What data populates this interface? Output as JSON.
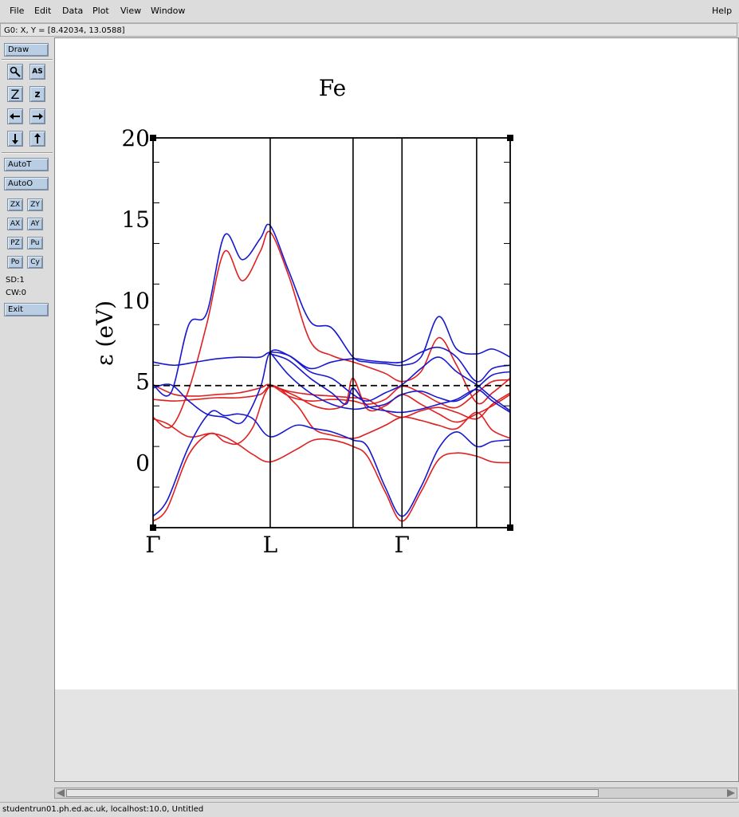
{
  "menubar": {
    "file": "File",
    "edit": "Edit",
    "data": "Data",
    "plot": "Plot",
    "view": "View",
    "window": "Window",
    "help": "Help"
  },
  "locator": {
    "text": "G0: X, Y = [8.42034, 13.0588]"
  },
  "toolbar": {
    "draw": "Draw",
    "autot": "AutoT",
    "autoo": "AutoO",
    "zx": "ZX",
    "zy": "ZY",
    "ax": "AX",
    "ay": "AY",
    "pz": "PZ",
    "pu": "Pu",
    "po": "Po",
    "cy": "Cy",
    "sd": "SD:1",
    "cw": "CW:0",
    "exit": "Exit",
    "zoom_letter": "Z",
    "zoom_letter_small": "z",
    "autoscale_glyph": "AS"
  },
  "status": {
    "text": "studentrun01.ph.ed.ac.uk, localhost:10.0, Untitled"
  },
  "chart_data": {
    "type": "line",
    "title": "Fe",
    "ylabel": "ε (eV)",
    "xlabel": "",
    "ylim": [
      -4,
      20
    ],
    "xlim": [
      0,
      1
    ],
    "yticks": [
      0,
      5,
      10,
      15,
      20
    ],
    "xticks": [
      {
        "label": "Γ",
        "x": 0
      },
      {
        "label": "L",
        "x": 0.328
      },
      {
        "label": "",
        "x": 0.56
      },
      {
        "label": "Γ",
        "x": 0.697
      },
      {
        "label": "",
        "x": 0.906
      }
    ],
    "fermi_level": 4.75,
    "colors": {
      "red": "#e02020",
      "blue": "#1818d0",
      "fermi": "#000000"
    },
    "series": [
      {
        "color": "red",
        "x": [
          0,
          0.04,
          0.1,
          0.16,
          0.2,
          0.24,
          0.28,
          0.328,
          0.4,
          0.45,
          0.5,
          0.56,
          0.6,
          0.65,
          0.697,
          0.75,
          0.8,
          0.85,
          0.906,
          0.95,
          1.0
        ],
        "y": [
          -3.6,
          -2.8,
          0.5,
          1.8,
          1.3,
          1.2,
          2.2,
          4.7,
          3.6,
          2.1,
          1.7,
          1.5,
          1.8,
          2.3,
          2.8,
          2.6,
          2.3,
          2.1,
          3.1,
          2.0,
          1.5
        ]
      },
      {
        "color": "red",
        "x": [
          0,
          0.04,
          0.1,
          0.16,
          0.2,
          0.24,
          0.28,
          0.328,
          0.4,
          0.45,
          0.5,
          0.56,
          0.6,
          0.65,
          0.697,
          0.75,
          0.8,
          0.85,
          0.906,
          0.95,
          1.0
        ],
        "y": [
          2.7,
          2.4,
          1.6,
          1.8,
          1.6,
          1.1,
          0.5,
          0.05,
          0.8,
          1.4,
          1.4,
          1.0,
          0.4,
          -1.8,
          -3.6,
          -1.8,
          0.2,
          0.6,
          0.4,
          0.05,
          0.0
        ]
      },
      {
        "color": "red",
        "x": [
          0,
          0.05,
          0.1,
          0.15,
          0.2,
          0.25,
          0.3,
          0.328,
          0.38,
          0.44,
          0.5,
          0.56,
          0.6,
          0.65,
          0.697,
          0.75,
          0.8,
          0.85,
          0.906,
          0.95,
          1.0
        ],
        "y": [
          2.8,
          2.2,
          4.5,
          8.5,
          13.0,
          11.2,
          13.0,
          14.2,
          11.5,
          7.5,
          6.6,
          6.2,
          5.9,
          5.5,
          5.0,
          5.6,
          7.7,
          6.0,
          3.7,
          4.3,
          5.2
        ]
      },
      {
        "color": "red",
        "x": [
          0,
          0.06,
          0.12,
          0.18,
          0.24,
          0.3,
          0.328,
          0.38,
          0.44,
          0.5,
          0.56,
          0.6,
          0.65,
          0.697,
          0.75,
          0.8,
          0.85,
          0.906,
          0.95,
          1.0
        ],
        "y": [
          3.9,
          3.8,
          3.9,
          4.0,
          4.0,
          4.2,
          4.7,
          4.4,
          4.2,
          4.1,
          4.0,
          3.9,
          3.2,
          2.8,
          3.2,
          3.4,
          3.1,
          2.7,
          3.6,
          4.3
        ]
      },
      {
        "color": "red",
        "x": [
          0,
          0.06,
          0.12,
          0.18,
          0.24,
          0.3,
          0.328,
          0.38,
          0.44,
          0.5,
          0.56,
          0.6,
          0.65,
          0.697,
          0.75,
          0.8,
          0.85,
          0.906,
          0.95,
          1.0
        ],
        "y": [
          4.8,
          4.2,
          4.1,
          4.2,
          4.3,
          4.6,
          4.8,
          4.1,
          3.8,
          3.9,
          3.8,
          3.6,
          3.9,
          4.7,
          4.3,
          3.7,
          3.4,
          4.3,
          5.0,
          5.1
        ]
      },
      {
        "color": "red",
        "x": [
          0.328,
          0.4,
          0.45,
          0.5,
          0.54,
          0.56,
          0.6,
          0.65,
          0.697,
          0.75,
          0.8,
          0.85,
          0.906,
          0.95,
          1.0
        ],
        "y": [
          4.8,
          4.1,
          3.5,
          3.3,
          3.7,
          5.2,
          3.3,
          3.5,
          4.2,
          3.6,
          3.0,
          2.5,
          3.0,
          3.5,
          4.2
        ]
      },
      {
        "color": "blue",
        "x": [
          0,
          0.04,
          0.1,
          0.16,
          0.2,
          0.24,
          0.28,
          0.328,
          0.4,
          0.45,
          0.5,
          0.56,
          0.6,
          0.65,
          0.697,
          0.75,
          0.8,
          0.85,
          0.906,
          0.95,
          1.0
        ],
        "y": [
          -3.3,
          -2.3,
          1.0,
          3.1,
          2.9,
          3.0,
          2.7,
          1.6,
          2.3,
          2.1,
          1.9,
          1.4,
          1.0,
          -1.5,
          -3.3,
          -1.5,
          0.9,
          1.9,
          1.0,
          1.3,
          1.4
        ]
      },
      {
        "color": "blue",
        "x": [
          0,
          0.05,
          0.1,
          0.15,
          0.2,
          0.25,
          0.3,
          0.328,
          0.38,
          0.44,
          0.5,
          0.56,
          0.6,
          0.65,
          0.697,
          0.75,
          0.8,
          0.85,
          0.906,
          0.95,
          1.0
        ],
        "y": [
          4.8,
          4.3,
          8.5,
          9.2,
          14.0,
          12.5,
          13.8,
          14.6,
          11.8,
          8.7,
          8.3,
          6.5,
          6.2,
          6.1,
          6.0,
          6.5,
          9.0,
          7.0,
          6.7,
          7.0,
          6.5
        ]
      },
      {
        "color": "blue",
        "x": [
          0,
          0.06,
          0.12,
          0.18,
          0.24,
          0.3,
          0.328,
          0.38,
          0.44,
          0.5,
          0.56,
          0.6,
          0.65,
          0.697,
          0.75,
          0.8,
          0.85,
          0.906,
          0.95,
          1.0
        ],
        "y": [
          6.2,
          6.0,
          6.2,
          6.4,
          6.5,
          6.5,
          6.8,
          6.6,
          5.8,
          6.2,
          6.4,
          6.3,
          6.2,
          6.2,
          6.8,
          7.1,
          6.5,
          5.0,
          5.8,
          6.0
        ]
      },
      {
        "color": "blue",
        "x": [
          0,
          0.05,
          0.1,
          0.15,
          0.2,
          0.25,
          0.3,
          0.328,
          0.38,
          0.44,
          0.5,
          0.56,
          0.6,
          0.65,
          0.697,
          0.75,
          0.8,
          0.85,
          0.906,
          0.95,
          1.0
        ],
        "y": [
          4.6,
          4.8,
          3.8,
          3.0,
          2.8,
          2.5,
          4.6,
          6.8,
          6.6,
          5.6,
          5.2,
          4.2,
          3.8,
          4.3,
          4.8,
          5.8,
          6.5,
          5.6,
          4.8,
          4.0,
          3.2
        ]
      },
      {
        "color": "blue",
        "x": [
          0.328,
          0.38,
          0.44,
          0.5,
          0.56,
          0.6,
          0.65,
          0.697,
          0.75,
          0.8,
          0.85,
          0.906,
          0.95,
          1.0
        ],
        "y": [
          6.8,
          5.4,
          4.3,
          3.6,
          3.3,
          3.4,
          3.6,
          4.2,
          4.4,
          4.0,
          3.8,
          4.6,
          5.4,
          5.6
        ]
      },
      {
        "color": "blue",
        "x": [
          0.328,
          0.38,
          0.44,
          0.5,
          0.54,
          0.56,
          0.6,
          0.65,
          0.697,
          0.75,
          0.8,
          0.85,
          0.906,
          0.95,
          1.0
        ],
        "y": [
          6.7,
          6.3,
          5.2,
          4.3,
          3.6,
          4.6,
          3.5,
          3.2,
          3.1,
          3.3,
          3.6,
          3.9,
          4.5,
          3.8,
          3.1
        ]
      }
    ]
  }
}
